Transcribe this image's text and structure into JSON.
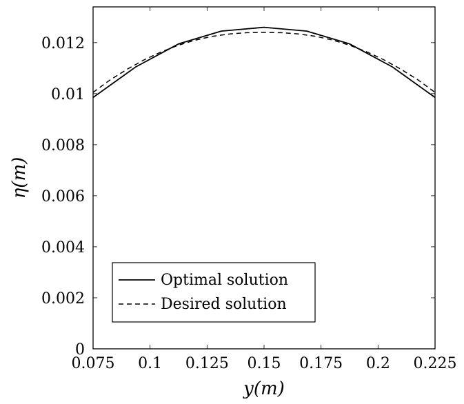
{
  "chart_data": {
    "type": "line",
    "title": "",
    "xlabel": "y(m)",
    "ylabel": "η(m)",
    "xlim": [
      0.075,
      0.225
    ],
    "ylim": [
      0,
      0.0134
    ],
    "xticks": [
      0.075,
      0.1,
      0.125,
      0.15,
      0.175,
      0.2,
      0.225
    ],
    "xtick_labels": [
      "0.075",
      "0.1",
      "0.125",
      "0.15",
      "0.175",
      "0.2",
      "0.225"
    ],
    "yticks": [
      0,
      0.002,
      0.004,
      0.006,
      0.008,
      0.01,
      0.012
    ],
    "ytick_labels": [
      "0",
      "0.002",
      "0.004",
      "0.006",
      "0.008",
      "0.01",
      "0.012"
    ],
    "grid": false,
    "legend_position": "bottom-left",
    "series": [
      {
        "name": "Optimal solution",
        "style": "solid",
        "color": "#000000",
        "x": [
          0.075,
          0.09375,
          0.1125,
          0.13125,
          0.15,
          0.16875,
          0.1875,
          0.20625,
          0.225
        ],
        "y": [
          0.00985,
          0.01105,
          0.01195,
          0.01245,
          0.0126,
          0.01245,
          0.01195,
          0.01105,
          0.00985
        ]
      },
      {
        "name": "Desired solution",
        "style": "dashed",
        "color": "#000000",
        "x": [
          0.075,
          0.0825,
          0.09,
          0.0975,
          0.105,
          0.1125,
          0.12,
          0.1275,
          0.135,
          0.1425,
          0.15,
          0.1575,
          0.165,
          0.1725,
          0.18,
          0.1875,
          0.195,
          0.2025,
          0.21,
          0.2175,
          0.225
        ],
        "y": [
          0.01005,
          0.01054,
          0.01096,
          0.01133,
          0.01164,
          0.0119,
          0.0121,
          0.01225,
          0.01234,
          0.01239,
          0.0124,
          0.01239,
          0.01234,
          0.01225,
          0.0121,
          0.0119,
          0.01164,
          0.01133,
          0.01096,
          0.01054,
          0.01005
        ]
      }
    ]
  }
}
